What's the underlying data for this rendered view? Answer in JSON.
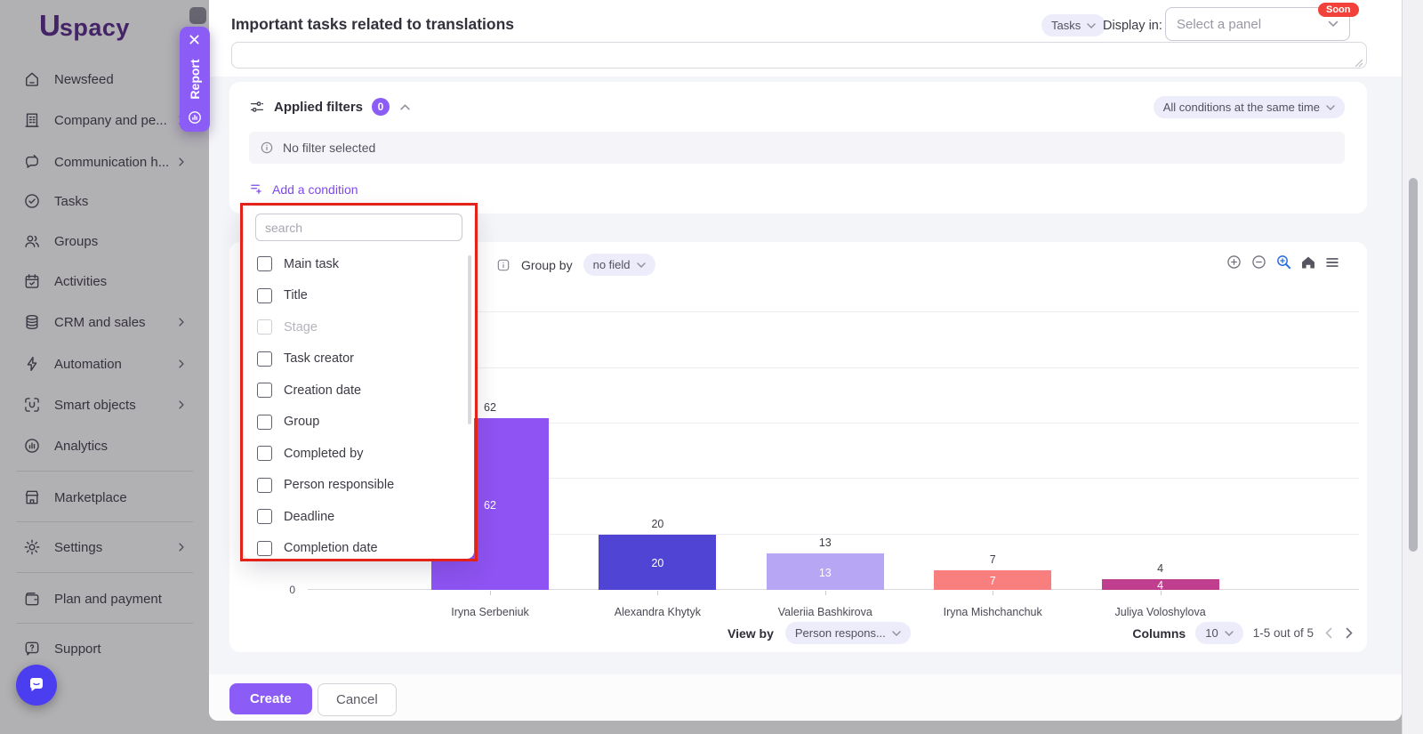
{
  "app": {
    "brand_u": "U",
    "brand_rest": "spacy"
  },
  "sidebar": {
    "items": [
      {
        "label": "Newsfeed",
        "icon": "home",
        "chevron": false
      },
      {
        "label": "Company and pe...",
        "icon": "building",
        "chevron": true
      },
      {
        "label": "Communication h...",
        "icon": "chat-pen",
        "chevron": true
      },
      {
        "label": "Tasks",
        "icon": "check-circle",
        "chevron": false
      },
      {
        "label": "Groups",
        "icon": "users",
        "chevron": false
      },
      {
        "label": "Activities",
        "icon": "calendar-check",
        "chevron": false
      },
      {
        "label": "CRM and sales",
        "icon": "database",
        "chevron": true
      },
      {
        "label": "Automation",
        "icon": "zap",
        "chevron": true
      },
      {
        "label": "Smart objects",
        "icon": "smart-u",
        "chevron": true
      },
      {
        "label": "Analytics",
        "icon": "analytics-circle",
        "chevron": false
      },
      {
        "label": "Marketplace",
        "icon": "store",
        "chevron": false,
        "divider_before": true
      },
      {
        "label": "Settings",
        "icon": "gear",
        "chevron": true,
        "divider_before": true
      },
      {
        "label": "Plan and payment",
        "icon": "wallet",
        "chevron": false,
        "divider_before": true
      },
      {
        "label": "Support",
        "icon": "help-bubble",
        "chevron": false,
        "divider_before": true
      }
    ]
  },
  "report_tab": {
    "label": "Report"
  },
  "header": {
    "title": "Important tasks related to translations",
    "entity_selector": "Tasks",
    "display_in_label": "Display in:",
    "panel_select_placeholder": "Select a panel",
    "soon_badge": "Soon"
  },
  "filters_card": {
    "title": "Applied filters",
    "count": "0",
    "mode_selector": "All conditions at the same time",
    "empty_message": "No filter selected",
    "add_condition_label": "Add a condition"
  },
  "field_dropdown": {
    "search_placeholder": "search",
    "options": [
      {
        "label": "Main task",
        "disabled": false
      },
      {
        "label": "Title",
        "disabled": false
      },
      {
        "label": "Stage",
        "disabled": true
      },
      {
        "label": "Task creator",
        "disabled": false
      },
      {
        "label": "Creation date",
        "disabled": false
      },
      {
        "label": "Group",
        "disabled": false
      },
      {
        "label": "Completed by",
        "disabled": false
      },
      {
        "label": "Person responsible",
        "disabled": false
      },
      {
        "label": "Deadline",
        "disabled": false
      },
      {
        "label": "Completion date",
        "disabled": false
      }
    ]
  },
  "chart_card": {
    "group_by_label": "Group by",
    "group_by_value": "no field",
    "view_by_label": "View by",
    "view_by_value": "Person respons...",
    "columns_label": "Columns",
    "columns_value": "10",
    "range_text": "1-5 out of 5"
  },
  "chart_data": {
    "type": "bar",
    "title": "",
    "xlabel": "",
    "ylabel": "",
    "categories": [
      "Iryna Serbeniuk",
      "Alexandra Khytyk",
      "Valeriia Bashkirova",
      "Iryna Mishchanchuk",
      "Juliya Voloshylova"
    ],
    "values": [
      62,
      20,
      13,
      7,
      4
    ],
    "bar_colors": [
      "#8e53f2",
      "#5044d4",
      "#b7a6f4",
      "#f97e7e",
      "#bf3e8d"
    ],
    "ylim": [
      0,
      110
    ],
    "grid_step": 20,
    "visible_y_tick": "0",
    "value_label_position": "above and inside",
    "legend": "none"
  },
  "modal_footer": {
    "create_label": "Create",
    "cancel_label": "Cancel"
  },
  "colors": {
    "accent": "#8b5cf6",
    "annotation_red": "#e3231a",
    "soon_red": "#f2403a"
  }
}
